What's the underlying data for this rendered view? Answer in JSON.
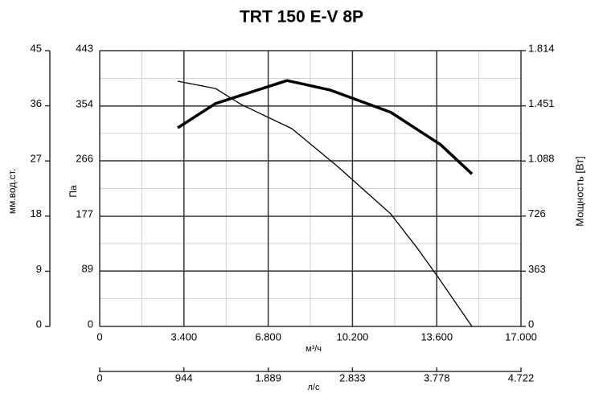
{
  "chart_data": {
    "type": "line",
    "title": "TRT 150 E-V 8P",
    "xlabel": "м³/ч",
    "ylabel": "Па",
    "y2label": "Мощность [Вт]",
    "y3label": "мм.вод.ст.",
    "x2label": "л/с",
    "xlim": [
      0,
      17000
    ],
    "xticks": [
      0,
      {
        "value": 3400,
        "label": "3.400"
      },
      {
        "value": 6800,
        "label": "6.800"
      },
      {
        "value": 10200,
        "label": "10.200"
      },
      {
        "value": 13600,
        "label": "13.600"
      },
      {
        "value": 17000,
        "label": "17.000"
      }
    ],
    "x2lim": [
      0,
      4722
    ],
    "x2ticks": [
      0,
      944,
      {
        "value": 1889,
        "label": "1.889"
      },
      {
        "value": 2833,
        "label": "2.833"
      },
      {
        "value": 3778,
        "label": "3.778"
      },
      {
        "value": 4722,
        "label": "4.722"
      }
    ],
    "ylim": [
      0,
      443
    ],
    "yticks": [
      0,
      89,
      177,
      266,
      354,
      443
    ],
    "y3lim": [
      0,
      45
    ],
    "y3ticks": [
      0,
      9,
      18,
      27,
      36,
      45
    ],
    "y2lim": [
      0,
      1814
    ],
    "y2ticks": [
      0,
      363,
      726,
      {
        "value": 1088,
        "label": "1.088"
      },
      {
        "value": 1451,
        "label": "1.451"
      },
      {
        "value": 1814,
        "label": "1.814"
      }
    ],
    "grid": true,
    "series": [
      {
        "color": "#000000",
        "line_width": 3.5,
        "axis": "y",
        "x": [
          3147,
          4672,
          7559,
          9279,
          11744,
          13756,
          15021
        ],
        "values": [
          319,
          358,
          395,
          380,
          344,
          292,
          245
        ]
      },
      {
        "color": "#000000",
        "line_width": 1.3,
        "axis": "y2",
        "x": [
          3147,
          4672,
          5710,
          7754,
          9603,
          11744,
          12847,
          13658,
          15021
        ],
        "values": [
          1613,
          1565,
          1460,
          1301,
          1052,
          740,
          508,
          323,
          0
        ]
      }
    ]
  }
}
